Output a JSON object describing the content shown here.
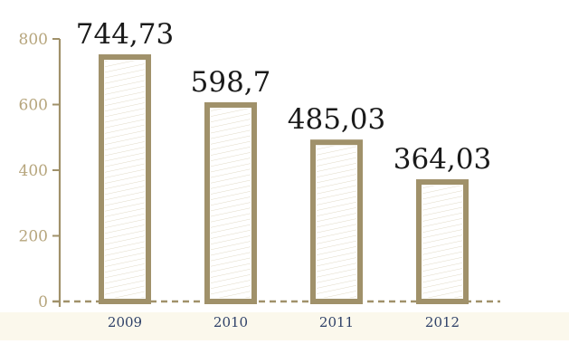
{
  "chart_data": {
    "type": "bar",
    "title": "",
    "xlabel": "",
    "ylabel": "",
    "categories": [
      "2009",
      "2010",
      "2011",
      "2012"
    ],
    "values": [
      744.73,
      598.7,
      485.03,
      364.03
    ],
    "data_labels": [
      "744,73",
      "598,7",
      "485,03",
      "364,03"
    ],
    "ylim": [
      0,
      800
    ],
    "yticks": [
      "0",
      "200",
      "400",
      "600",
      "800"
    ],
    "grid": false,
    "legend": "none",
    "colors": {
      "bar_outline": "#a0916a",
      "bar_hatch": "#c6b994",
      "axis": "#a0916a",
      "ytick_text": "#b6a57c",
      "xtick_text": "#2f4168",
      "data_label": "#1a1a1a",
      "footer_band": "#fbf8ec"
    }
  }
}
